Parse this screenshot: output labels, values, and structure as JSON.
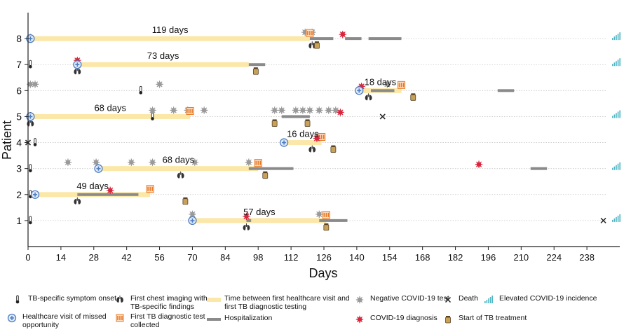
{
  "chart_data": {
    "type": "timeline",
    "xlabel": "Days",
    "ylabel": "Patient",
    "xlim": [
      0,
      252
    ],
    "xticks": [
      0,
      14,
      28,
      42,
      56,
      70,
      84,
      98,
      112,
      126,
      140,
      154,
      168,
      182,
      196,
      210,
      224,
      238
    ],
    "ylim": [
      0,
      9
    ],
    "yticks": [
      1,
      2,
      3,
      4,
      5,
      6,
      7,
      8
    ],
    "grid": "horizontal dotted",
    "patients": [
      {
        "id": 8,
        "onset": [
          1
        ],
        "visit": 1,
        "window": [
          1,
          120
        ],
        "window_label": "119 days",
        "imaging": [
          121
        ],
        "diag_test": [
          120
        ],
        "covid_neg": [
          118,
          121
        ],
        "covid_dx": [
          134
        ],
        "treatment": [
          123
        ],
        "hosp": [
          [
            120,
            130
          ],
          [
            135,
            142
          ],
          [
            145,
            159
          ]
        ],
        "death": [],
        "elevated": true
      },
      {
        "id": 7,
        "onset": [
          1
        ],
        "visit": 21,
        "window": [
          21,
          94
        ],
        "window_label": "73 days",
        "imaging": [
          21
        ],
        "diag_test": [],
        "covid_neg": [],
        "covid_dx": [
          21
        ],
        "treatment": [
          97
        ],
        "hosp": [
          [
            94,
            101
          ]
        ],
        "death": [],
        "elevated": true
      },
      {
        "id": 6,
        "onset": [
          48
        ],
        "visit": 141,
        "window": [
          141,
          159
        ],
        "window_label": "18 days",
        "imaging": [
          145
        ],
        "diag_test": [
          159
        ],
        "covid_neg": [
          1,
          3,
          56,
          153
        ],
        "covid_dx": [
          142
        ],
        "treatment": [
          164
        ],
        "hosp": [
          [
            146,
            156
          ],
          [
            200,
            207
          ]
        ],
        "death": [],
        "elevated": false
      },
      {
        "id": 5,
        "onset": [
          1,
          53
        ],
        "visit": 1,
        "window": [
          1,
          69
        ],
        "window_label": "68 days",
        "imaging": [
          1
        ],
        "diag_test": [
          69
        ],
        "covid_neg": [
          53,
          62,
          68,
          75,
          105,
          108,
          114,
          117,
          120,
          124,
          128,
          131
        ],
        "covid_dx": [
          133
        ],
        "treatment": [
          105,
          119
        ],
        "hosp": [
          [
            108,
            120
          ]
        ],
        "death": [
          151
        ],
        "elevated": true
      },
      {
        "id": 4,
        "onset": [
          3
        ],
        "visit": 109,
        "window": [
          109,
          125
        ],
        "window_label": "16 days",
        "imaging": [
          121
        ],
        "diag_test": [
          125
        ],
        "covid_neg": [
          123
        ],
        "covid_dx": [
          123
        ],
        "treatment": [
          130
        ],
        "hosp": [],
        "death": [
          0
        ],
        "elevated": false
      },
      {
        "id": 3,
        "onset": [
          1
        ],
        "visit": 30,
        "window": [
          30,
          98
        ],
        "window_label": "68 days",
        "imaging": [
          65
        ],
        "diag_test": [
          98
        ],
        "covid_neg": [
          17,
          29,
          44,
          53,
          71,
          94
        ],
        "covid_dx": [
          192
        ],
        "treatment": [
          101
        ],
        "hosp": [
          [
            94,
            113
          ],
          [
            214,
            221
          ]
        ],
        "death": [],
        "elevated": true
      },
      {
        "id": 2,
        "onset": [
          1
        ],
        "visit": 3,
        "window": [
          3,
          52
        ],
        "window_label": "49 days",
        "imaging": [
          21
        ],
        "diag_test": [
          52
        ],
        "covid_neg": [],
        "covid_dx": [
          35
        ],
        "treatment": [
          67
        ],
        "hosp": [
          [
            21,
            47
          ]
        ],
        "death": [],
        "elevated": false
      },
      {
        "id": 1,
        "onset": [
          1
        ],
        "visit": 70,
        "window": [
          70,
          127
        ],
        "window_label": "57 days",
        "imaging": [
          93
        ],
        "diag_test": [
          127
        ],
        "covid_neg": [
          70,
          124
        ],
        "covid_dx": [
          93
        ],
        "treatment": [
          127
        ],
        "hosp": [
          [
            93,
            95
          ],
          [
            124,
            136
          ]
        ],
        "death": [
          245
        ],
        "elevated": true
      }
    ]
  },
  "legend": [
    {
      "key": "onset",
      "label": "TB-specific symptom onset"
    },
    {
      "key": "imaging",
      "label": "First chest imaging with TB-specific findings"
    },
    {
      "key": "window",
      "label": "Time between first healthcare visit and first TB diagnostic testing"
    },
    {
      "key": "covid_neg",
      "label": "Negative COVID-19 test"
    },
    {
      "key": "death",
      "label": "Death"
    },
    {
      "key": "elevated",
      "label": "Elevated COVID-19 incidence"
    },
    {
      "key": "visit",
      "label": "Healthcare visit of missed opportunity"
    },
    {
      "key": "diag_test",
      "label": "First TB diagnostic test collected"
    },
    {
      "key": "hosp",
      "label": "Hospitalization"
    },
    {
      "key": "covid_dx",
      "label": "COVID-19 diagnosis"
    },
    {
      "key": "treatment",
      "label": "Start of TB treatment"
    }
  ],
  "colors": {
    "window": "#fbe7a8",
    "hosp": "#8a8a8a",
    "visit": "#4f7fc4",
    "covid_dx": "#d7263d",
    "covid_neg": "#9a9a9a",
    "diag_test": "#e87722",
    "treatment": "#a47a2c",
    "elevated": "#4fb6c4",
    "grid": "#c8c8c8",
    "axis": "#222222"
  },
  "icons": {
    "onset": "thermometer-icon",
    "imaging": "lungs-icon",
    "visit": "healthcare-visit-icon",
    "diag_test": "test-tubes-icon",
    "covid_neg": "virus-gray-icon",
    "covid_dx": "virus-red-icon",
    "treatment": "pill-bottle-icon",
    "death": "cross-mark-icon",
    "elevated": "bar-trend-icon"
  }
}
